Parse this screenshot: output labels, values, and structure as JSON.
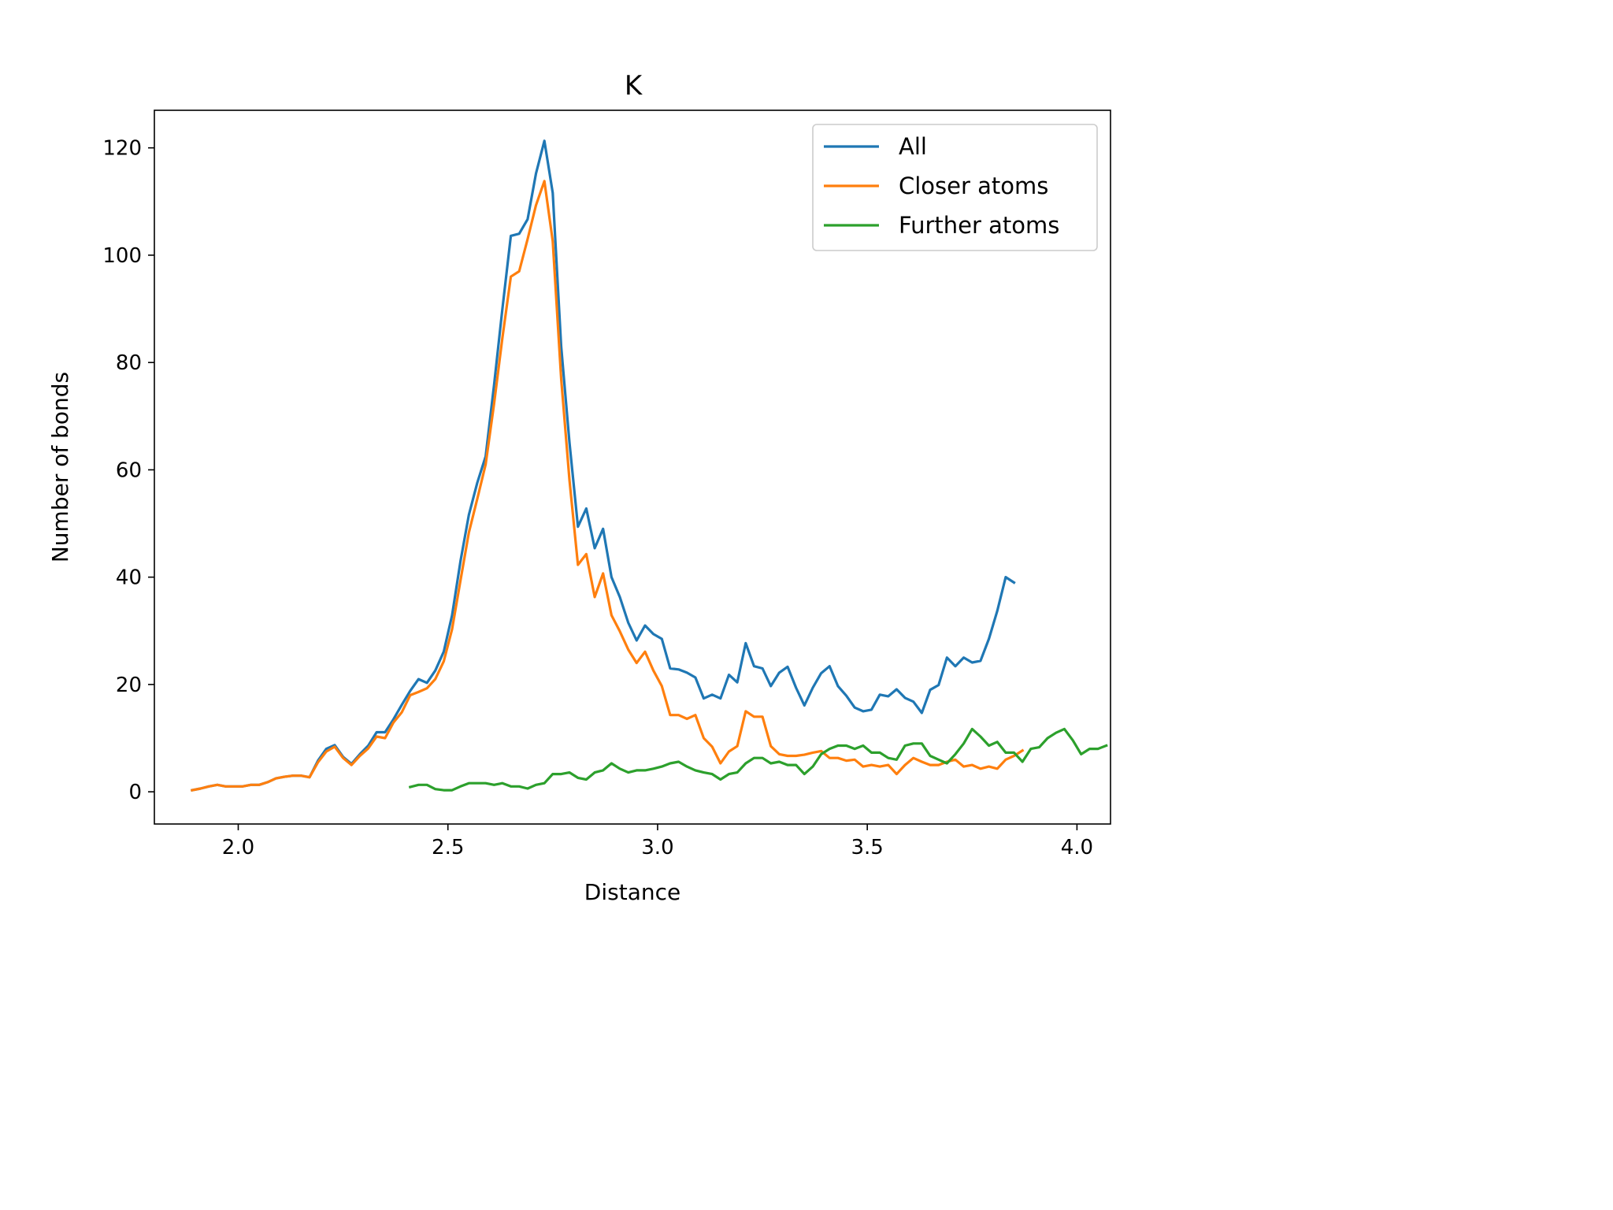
{
  "chart_data": {
    "type": "line",
    "title": "K",
    "xlabel": "Distance",
    "ylabel": "Number of bonds",
    "xlim": [
      1.8,
      4.08
    ],
    "ylim": [
      -6,
      127
    ],
    "xticks": [
      "2.0",
      "2.5",
      "3.0",
      "3.5",
      "4.0"
    ],
    "yticks": [
      "0",
      "20",
      "40",
      "60",
      "80",
      "100",
      "120"
    ],
    "legend_position": "top-right",
    "grid": false,
    "series": [
      {
        "name": "All",
        "color": "#1f77b4",
        "points": [
          [
            1.89,
            0.3
          ],
          [
            1.91,
            0.6
          ],
          [
            1.93,
            1.0
          ],
          [
            1.95,
            1.3
          ],
          [
            1.97,
            1.0
          ],
          [
            1.99,
            1.0
          ],
          [
            2.01,
            1.0
          ],
          [
            2.03,
            1.3
          ],
          [
            2.05,
            1.3
          ],
          [
            2.07,
            1.8
          ],
          [
            2.09,
            2.5
          ],
          [
            2.11,
            2.8
          ],
          [
            2.13,
            3.0
          ],
          [
            2.15,
            3.0
          ],
          [
            2.17,
            2.7
          ],
          [
            2.19,
            5.8
          ],
          [
            2.21,
            8.0
          ],
          [
            2.23,
            8.7
          ],
          [
            2.25,
            6.5
          ],
          [
            2.27,
            5.2
          ],
          [
            2.29,
            7.0
          ],
          [
            2.31,
            8.6
          ],
          [
            2.33,
            11.1
          ],
          [
            2.35,
            11.1
          ],
          [
            2.37,
            13.5
          ],
          [
            2.39,
            16.2
          ],
          [
            2.41,
            18.8
          ],
          [
            2.43,
            21.0
          ],
          [
            2.45,
            20.3
          ],
          [
            2.47,
            22.6
          ],
          [
            2.49,
            26.1
          ],
          [
            2.51,
            32.9
          ],
          [
            2.53,
            43.0
          ],
          [
            2.55,
            51.6
          ],
          [
            2.57,
            57.6
          ],
          [
            2.59,
            62.5
          ],
          [
            2.61,
            75.8
          ],
          [
            2.63,
            90.0
          ],
          [
            2.65,
            103.6
          ],
          [
            2.67,
            104.0
          ],
          [
            2.69,
            106.7
          ],
          [
            2.71,
            115.2
          ],
          [
            2.73,
            121.3
          ],
          [
            2.75,
            111.6
          ],
          [
            2.77,
            83.0
          ],
          [
            2.79,
            65.0
          ],
          [
            2.81,
            49.4
          ],
          [
            2.83,
            52.8
          ],
          [
            2.85,
            45.4
          ],
          [
            2.87,
            49.0
          ],
          [
            2.89,
            40.0
          ],
          [
            2.91,
            36.3
          ],
          [
            2.93,
            31.5
          ],
          [
            2.95,
            28.2
          ],
          [
            2.97,
            31.0
          ],
          [
            2.99,
            29.4
          ],
          [
            3.01,
            28.5
          ],
          [
            3.03,
            23.0
          ],
          [
            3.05,
            22.8
          ],
          [
            3.07,
            22.2
          ],
          [
            3.09,
            21.3
          ],
          [
            3.11,
            17.4
          ],
          [
            3.13,
            18.1
          ],
          [
            3.15,
            17.4
          ],
          [
            3.17,
            21.8
          ],
          [
            3.19,
            20.4
          ],
          [
            3.21,
            27.7
          ],
          [
            3.23,
            23.4
          ],
          [
            3.25,
            23.0
          ],
          [
            3.27,
            19.7
          ],
          [
            3.29,
            22.2
          ],
          [
            3.31,
            23.3
          ],
          [
            3.33,
            19.4
          ],
          [
            3.35,
            16.1
          ],
          [
            3.37,
            19.4
          ],
          [
            3.39,
            22.1
          ],
          [
            3.41,
            23.4
          ],
          [
            3.43,
            19.7
          ],
          [
            3.45,
            17.9
          ],
          [
            3.47,
            15.7
          ],
          [
            3.49,
            15.0
          ],
          [
            3.51,
            15.3
          ],
          [
            3.53,
            18.1
          ],
          [
            3.55,
            17.8
          ],
          [
            3.57,
            19.1
          ],
          [
            3.59,
            17.5
          ],
          [
            3.61,
            16.8
          ],
          [
            3.63,
            14.7
          ],
          [
            3.65,
            19.0
          ],
          [
            3.67,
            19.9
          ],
          [
            3.69,
            25.0
          ],
          [
            3.71,
            23.4
          ],
          [
            3.73,
            25.0
          ],
          [
            3.75,
            24.1
          ],
          [
            3.77,
            24.4
          ],
          [
            3.79,
            28.5
          ],
          [
            3.81,
            33.7
          ],
          [
            3.83,
            40.0
          ],
          [
            3.85,
            39.0
          ]
        ]
      },
      {
        "name": "Closer atoms",
        "color": "#ff7f0e",
        "points": [
          [
            1.89,
            0.3
          ],
          [
            1.91,
            0.6
          ],
          [
            1.93,
            1.0
          ],
          [
            1.95,
            1.3
          ],
          [
            1.97,
            1.0
          ],
          [
            1.99,
            1.0
          ],
          [
            2.01,
            1.0
          ],
          [
            2.03,
            1.3
          ],
          [
            2.05,
            1.3
          ],
          [
            2.07,
            1.8
          ],
          [
            2.09,
            2.5
          ],
          [
            2.11,
            2.8
          ],
          [
            2.13,
            3.0
          ],
          [
            2.15,
            3.0
          ],
          [
            2.17,
            2.7
          ],
          [
            2.19,
            5.5
          ],
          [
            2.21,
            7.5
          ],
          [
            2.23,
            8.4
          ],
          [
            2.25,
            6.3
          ],
          [
            2.27,
            5.0
          ],
          [
            2.29,
            6.7
          ],
          [
            2.31,
            8.1
          ],
          [
            2.33,
            10.3
          ],
          [
            2.35,
            10.0
          ],
          [
            2.37,
            12.9
          ],
          [
            2.39,
            14.8
          ],
          [
            2.41,
            18.0
          ],
          [
            2.43,
            18.6
          ],
          [
            2.45,
            19.3
          ],
          [
            2.47,
            21.0
          ],
          [
            2.49,
            24.3
          ],
          [
            2.51,
            30.3
          ],
          [
            2.53,
            39.4
          ],
          [
            2.55,
            48.3
          ],
          [
            2.57,
            54.6
          ],
          [
            2.59,
            61.0
          ],
          [
            2.61,
            72.3
          ],
          [
            2.63,
            84.6
          ],
          [
            2.65,
            96.0
          ],
          [
            2.67,
            97.0
          ],
          [
            2.69,
            103.0
          ],
          [
            2.71,
            109.3
          ],
          [
            2.73,
            113.8
          ],
          [
            2.75,
            102.6
          ],
          [
            2.77,
            77.0
          ],
          [
            2.79,
            58.0
          ],
          [
            2.81,
            42.3
          ],
          [
            2.83,
            44.3
          ],
          [
            2.85,
            36.3
          ],
          [
            2.87,
            40.7
          ],
          [
            2.89,
            32.9
          ],
          [
            2.91,
            29.9
          ],
          [
            2.93,
            26.5
          ],
          [
            2.95,
            24.0
          ],
          [
            2.97,
            26.1
          ],
          [
            2.99,
            22.6
          ],
          [
            3.01,
            19.7
          ],
          [
            3.03,
            14.3
          ],
          [
            3.05,
            14.3
          ],
          [
            3.07,
            13.6
          ],
          [
            3.09,
            14.3
          ],
          [
            3.11,
            10.0
          ],
          [
            3.13,
            8.4
          ],
          [
            3.15,
            5.3
          ],
          [
            3.17,
            7.5
          ],
          [
            3.19,
            8.5
          ],
          [
            3.21,
            15.0
          ],
          [
            3.23,
            14.0
          ],
          [
            3.25,
            14.0
          ],
          [
            3.27,
            8.5
          ],
          [
            3.29,
            7.0
          ],
          [
            3.31,
            6.7
          ],
          [
            3.33,
            6.7
          ],
          [
            3.35,
            6.9
          ],
          [
            3.37,
            7.3
          ],
          [
            3.39,
            7.6
          ],
          [
            3.41,
            6.3
          ],
          [
            3.43,
            6.3
          ],
          [
            3.45,
            5.8
          ],
          [
            3.47,
            6.0
          ],
          [
            3.49,
            4.7
          ],
          [
            3.51,
            5.0
          ],
          [
            3.53,
            4.7
          ],
          [
            3.55,
            5.0
          ],
          [
            3.57,
            3.3
          ],
          [
            3.59,
            5.0
          ],
          [
            3.61,
            6.3
          ],
          [
            3.63,
            5.6
          ],
          [
            3.65,
            5.0
          ],
          [
            3.67,
            5.0
          ],
          [
            3.69,
            5.6
          ],
          [
            3.71,
            6.0
          ],
          [
            3.73,
            4.7
          ],
          [
            3.75,
            5.0
          ],
          [
            3.77,
            4.3
          ],
          [
            3.79,
            4.7
          ],
          [
            3.81,
            4.3
          ],
          [
            3.83,
            6.0
          ],
          [
            3.85,
            6.7
          ],
          [
            3.87,
            7.7
          ]
        ]
      },
      {
        "name": "Further atoms",
        "color": "#2ca02c",
        "points": [
          [
            2.41,
            0.9
          ],
          [
            2.43,
            1.3
          ],
          [
            2.45,
            1.3
          ],
          [
            2.47,
            0.5
          ],
          [
            2.49,
            0.3
          ],
          [
            2.51,
            0.3
          ],
          [
            2.53,
            1.0
          ],
          [
            2.55,
            1.6
          ],
          [
            2.57,
            1.6
          ],
          [
            2.59,
            1.6
          ],
          [
            2.61,
            1.3
          ],
          [
            2.63,
            1.6
          ],
          [
            2.65,
            1.0
          ],
          [
            2.67,
            1.0
          ],
          [
            2.69,
            0.6
          ],
          [
            2.71,
            1.3
          ],
          [
            2.73,
            1.6
          ],
          [
            2.75,
            3.3
          ],
          [
            2.77,
            3.3
          ],
          [
            2.79,
            3.6
          ],
          [
            2.81,
            2.6
          ],
          [
            2.83,
            2.3
          ],
          [
            2.85,
            3.6
          ],
          [
            2.87,
            4.0
          ],
          [
            2.89,
            5.3
          ],
          [
            2.91,
            4.3
          ],
          [
            2.93,
            3.6
          ],
          [
            2.95,
            4.0
          ],
          [
            2.97,
            4.0
          ],
          [
            2.99,
            4.3
          ],
          [
            3.01,
            4.7
          ],
          [
            3.03,
            5.3
          ],
          [
            3.05,
            5.6
          ],
          [
            3.07,
            4.7
          ],
          [
            3.09,
            4.0
          ],
          [
            3.11,
            3.6
          ],
          [
            3.13,
            3.3
          ],
          [
            3.15,
            2.3
          ],
          [
            3.17,
            3.3
          ],
          [
            3.19,
            3.6
          ],
          [
            3.21,
            5.3
          ],
          [
            3.23,
            6.3
          ],
          [
            3.25,
            6.3
          ],
          [
            3.27,
            5.3
          ],
          [
            3.29,
            5.6
          ],
          [
            3.31,
            5.0
          ],
          [
            3.33,
            5.0
          ],
          [
            3.35,
            3.3
          ],
          [
            3.37,
            4.7
          ],
          [
            3.39,
            7.0
          ],
          [
            3.41,
            8.0
          ],
          [
            3.43,
            8.6
          ],
          [
            3.45,
            8.6
          ],
          [
            3.47,
            8.0
          ],
          [
            3.49,
            8.6
          ],
          [
            3.51,
            7.3
          ],
          [
            3.53,
            7.3
          ],
          [
            3.55,
            6.3
          ],
          [
            3.57,
            6.0
          ],
          [
            3.59,
            8.6
          ],
          [
            3.61,
            9.0
          ],
          [
            3.63,
            9.0
          ],
          [
            3.65,
            6.7
          ],
          [
            3.67,
            6.0
          ],
          [
            3.69,
            5.3
          ],
          [
            3.71,
            7.0
          ],
          [
            3.73,
            9.0
          ],
          [
            3.75,
            11.7
          ],
          [
            3.77,
            10.3
          ],
          [
            3.79,
            8.6
          ],
          [
            3.81,
            9.3
          ],
          [
            3.83,
            7.3
          ],
          [
            3.85,
            7.3
          ],
          [
            3.87,
            5.6
          ],
          [
            3.89,
            8.0
          ],
          [
            3.91,
            8.3
          ],
          [
            3.93,
            10.0
          ],
          [
            3.95,
            11.0
          ],
          [
            3.97,
            11.7
          ],
          [
            3.99,
            9.6
          ],
          [
            4.01,
            7.0
          ],
          [
            4.03,
            8.0
          ],
          [
            4.05,
            8.0
          ],
          [
            4.07,
            8.6
          ]
        ]
      }
    ]
  }
}
